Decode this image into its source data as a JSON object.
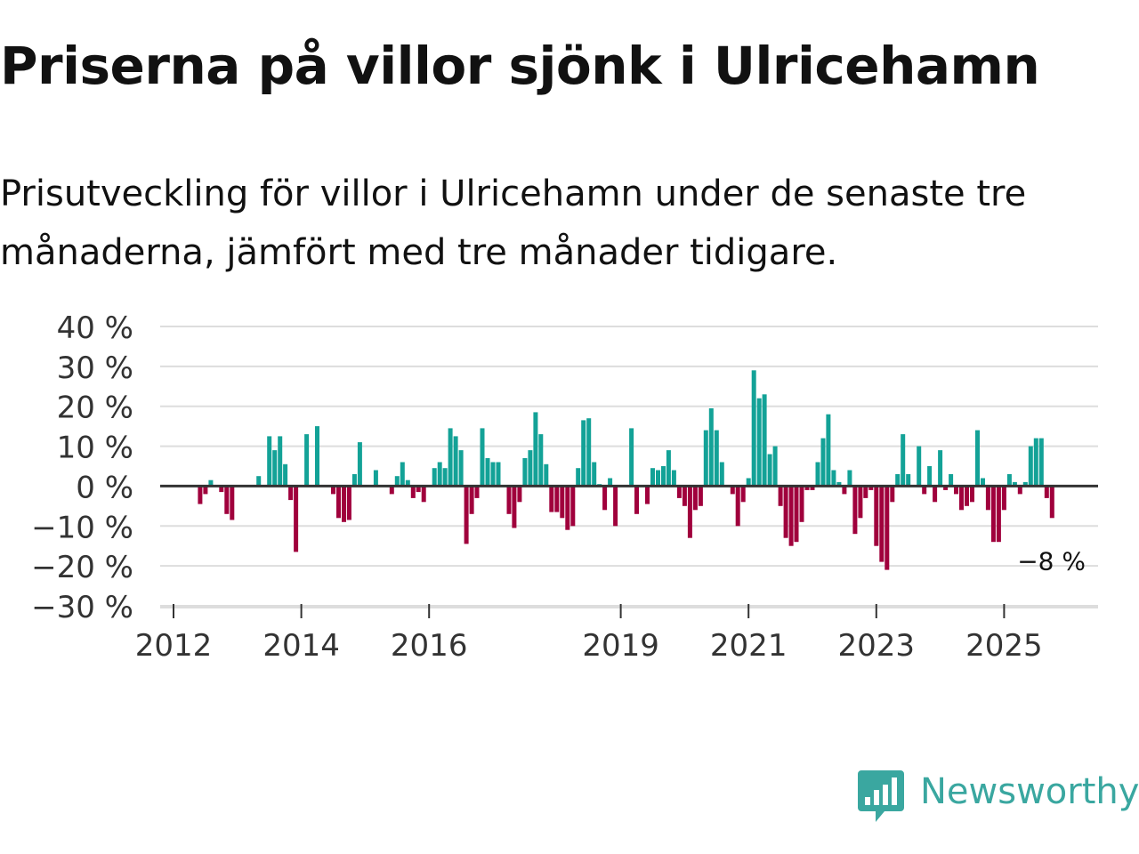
{
  "header": {
    "title": "Priserna på villor sjönk i Ulricehamn",
    "subtitle": "Prisutveckling för villor i Ulricehamn under de senaste tre månaderna, jämfört med tre månader tidigare."
  },
  "brand": {
    "name": "Newsworthy",
    "color": "#3aa7a0"
  },
  "chart_data": {
    "type": "bar",
    "title": "Priserna på villor sjönk i Ulricehamn",
    "xlabel": "",
    "ylabel": "",
    "ylim": [
      -30,
      40
    ],
    "yticks": [
      40,
      30,
      20,
      10,
      0,
      -10,
      -20,
      -30
    ],
    "ytick_labels": [
      "40 %",
      "30 %",
      "20 %",
      "10 %",
      "0 %",
      "−10 %",
      "−20 %",
      "−30 %"
    ],
    "xticks": [
      "2012",
      "2014",
      "2016",
      "2019",
      "2021",
      "2023",
      "2025"
    ],
    "grid": true,
    "colors": {
      "positive": "#13a297",
      "negative": "#a0003c",
      "grid": "#dddddd",
      "zero_line": "#333333"
    },
    "series": [
      {
        "name": "Prisutveckling",
        "values": [
          {
            "date": "2012-06",
            "value": -4.5
          },
          {
            "date": "2012-07",
            "value": -2.0
          },
          {
            "date": "2012-08",
            "value": 1.5
          },
          {
            "date": "2012-10",
            "value": -1.5
          },
          {
            "date": "2012-11",
            "value": -7.0
          },
          {
            "date": "2012-12",
            "value": -8.5
          },
          {
            "date": "2013-05",
            "value": 2.5
          },
          {
            "date": "2013-07",
            "value": 12.5
          },
          {
            "date": "2013-08",
            "value": 9.0
          },
          {
            "date": "2013-09",
            "value": 12.5
          },
          {
            "date": "2013-10",
            "value": 5.5
          },
          {
            "date": "2013-11",
            "value": -3.5
          },
          {
            "date": "2013-12",
            "value": -16.5
          },
          {
            "date": "2014-02",
            "value": 13.0
          },
          {
            "date": "2014-04",
            "value": 15.0
          },
          {
            "date": "2014-07",
            "value": -2.0
          },
          {
            "date": "2014-08",
            "value": -8.0
          },
          {
            "date": "2014-09",
            "value": -9.0
          },
          {
            "date": "2014-10",
            "value": -8.5
          },
          {
            "date": "2014-11",
            "value": 3.0
          },
          {
            "date": "2014-12",
            "value": 11.0
          },
          {
            "date": "2015-03",
            "value": 4.0
          },
          {
            "date": "2015-06",
            "value": -2.0
          },
          {
            "date": "2015-07",
            "value": 2.5
          },
          {
            "date": "2015-08",
            "value": 6.0
          },
          {
            "date": "2015-09",
            "value": 1.5
          },
          {
            "date": "2015-10",
            "value": -3.0
          },
          {
            "date": "2015-11",
            "value": -1.5
          },
          {
            "date": "2015-12",
            "value": -4.0
          },
          {
            "date": "2016-02",
            "value": 4.5
          },
          {
            "date": "2016-03",
            "value": 6.0
          },
          {
            "date": "2016-04",
            "value": 4.5
          },
          {
            "date": "2016-05",
            "value": 14.5
          },
          {
            "date": "2016-06",
            "value": 12.5
          },
          {
            "date": "2016-07",
            "value": 9.0
          },
          {
            "date": "2016-08",
            "value": -14.5
          },
          {
            "date": "2016-09",
            "value": -7.0
          },
          {
            "date": "2016-10",
            "value": -3.0
          },
          {
            "date": "2016-11",
            "value": 14.5
          },
          {
            "date": "2016-12",
            "value": 7.0
          },
          {
            "date": "2017-01",
            "value": 6.0
          },
          {
            "date": "2017-02",
            "value": 6.0
          },
          {
            "date": "2017-04",
            "value": -7.0
          },
          {
            "date": "2017-05",
            "value": -10.5
          },
          {
            "date": "2017-06",
            "value": -4.0
          },
          {
            "date": "2017-07",
            "value": 7.0
          },
          {
            "date": "2017-08",
            "value": 9.0
          },
          {
            "date": "2017-09",
            "value": 18.5
          },
          {
            "date": "2017-10",
            "value": 13.0
          },
          {
            "date": "2017-11",
            "value": 5.5
          },
          {
            "date": "2017-12",
            "value": -6.5
          },
          {
            "date": "2018-01",
            "value": -6.5
          },
          {
            "date": "2018-02",
            "value": -8.0
          },
          {
            "date": "2018-03",
            "value": -11.0
          },
          {
            "date": "2018-04",
            "value": -10.0
          },
          {
            "date": "2018-05",
            "value": 4.5
          },
          {
            "date": "2018-06",
            "value": 16.5
          },
          {
            "date": "2018-07",
            "value": 17.0
          },
          {
            "date": "2018-08",
            "value": 6.0
          },
          {
            "date": "2018-09",
            "value": 0.5
          },
          {
            "date": "2018-10",
            "value": -6.0
          },
          {
            "date": "2018-11",
            "value": 2.0
          },
          {
            "date": "2018-12",
            "value": -10.0
          },
          {
            "date": "2019-03",
            "value": 14.5
          },
          {
            "date": "2019-04",
            "value": -7.0
          },
          {
            "date": "2019-06",
            "value": -4.5
          },
          {
            "date": "2019-07",
            "value": 4.5
          },
          {
            "date": "2019-08",
            "value": 4.0
          },
          {
            "date": "2019-09",
            "value": 5.0
          },
          {
            "date": "2019-10",
            "value": 9.0
          },
          {
            "date": "2019-11",
            "value": 4.0
          },
          {
            "date": "2019-12",
            "value": -3.0
          },
          {
            "date": "2020-01",
            "value": -5.0
          },
          {
            "date": "2020-02",
            "value": -13.0
          },
          {
            "date": "2020-03",
            "value": -6.0
          },
          {
            "date": "2020-04",
            "value": -5.0
          },
          {
            "date": "2020-05",
            "value": 14.0
          },
          {
            "date": "2020-06",
            "value": 19.5
          },
          {
            "date": "2020-07",
            "value": 14.0
          },
          {
            "date": "2020-08",
            "value": 6.0
          },
          {
            "date": "2020-10",
            "value": -2.0
          },
          {
            "date": "2020-11",
            "value": -10.0
          },
          {
            "date": "2020-12",
            "value": -4.0
          },
          {
            "date": "2021-01",
            "value": 2.0
          },
          {
            "date": "2021-02",
            "value": 29.0
          },
          {
            "date": "2021-03",
            "value": 22.0
          },
          {
            "date": "2021-04",
            "value": 23.0
          },
          {
            "date": "2021-05",
            "value": 8.0
          },
          {
            "date": "2021-06",
            "value": 10.0
          },
          {
            "date": "2021-07",
            "value": -5.0
          },
          {
            "date": "2021-08",
            "value": -13.0
          },
          {
            "date": "2021-09",
            "value": -15.0
          },
          {
            "date": "2021-10",
            "value": -14.0
          },
          {
            "date": "2021-11",
            "value": -9.0
          },
          {
            "date": "2021-12",
            "value": -1.0
          },
          {
            "date": "2022-01",
            "value": -1.0
          },
          {
            "date": "2022-02",
            "value": 6.0
          },
          {
            "date": "2022-03",
            "value": 12.0
          },
          {
            "date": "2022-04",
            "value": 18.0
          },
          {
            "date": "2022-05",
            "value": 4.0
          },
          {
            "date": "2022-06",
            "value": 1.0
          },
          {
            "date": "2022-07",
            "value": -2.0
          },
          {
            "date": "2022-08",
            "value": 4.0
          },
          {
            "date": "2022-09",
            "value": -12.0
          },
          {
            "date": "2022-10",
            "value": -8.0
          },
          {
            "date": "2022-11",
            "value": -3.0
          },
          {
            "date": "2022-12",
            "value": -1.0
          },
          {
            "date": "2023-01",
            "value": -15.0
          },
          {
            "date": "2023-02",
            "value": -19.0
          },
          {
            "date": "2023-03",
            "value": -21.0
          },
          {
            "date": "2023-04",
            "value": -4.0
          },
          {
            "date": "2023-05",
            "value": 3.0
          },
          {
            "date": "2023-06",
            "value": 13.0
          },
          {
            "date": "2023-07",
            "value": 3.0
          },
          {
            "date": "2023-09",
            "value": 10.0
          },
          {
            "date": "2023-10",
            "value": -2.0
          },
          {
            "date": "2023-11",
            "value": 5.0
          },
          {
            "date": "2023-12",
            "value": -4.0
          },
          {
            "date": "2024-01",
            "value": 9.0
          },
          {
            "date": "2024-02",
            "value": -1.0
          },
          {
            "date": "2024-03",
            "value": 3.0
          },
          {
            "date": "2024-04",
            "value": -2.0
          },
          {
            "date": "2024-05",
            "value": -6.0
          },
          {
            "date": "2024-06",
            "value": -5.0
          },
          {
            "date": "2024-07",
            "value": -4.0
          },
          {
            "date": "2024-08",
            "value": 14.0
          },
          {
            "date": "2024-09",
            "value": 2.0
          },
          {
            "date": "2024-10",
            "value": -6.0
          },
          {
            "date": "2024-11",
            "value": -14.0
          },
          {
            "date": "2024-12",
            "value": -14.0
          },
          {
            "date": "2025-01",
            "value": -6.0
          },
          {
            "date": "2025-02",
            "value": 3.0
          },
          {
            "date": "2025-03",
            "value": 1.0
          },
          {
            "date": "2025-04",
            "value": -2.0
          },
          {
            "date": "2025-05",
            "value": 1.0
          },
          {
            "date": "2025-06",
            "value": 10.0
          },
          {
            "date": "2025-07",
            "value": 12.0
          },
          {
            "date": "2025-08",
            "value": 12.0
          },
          {
            "date": "2025-09",
            "value": -3.0
          },
          {
            "date": "2025-10",
            "value": -8.0
          }
        ]
      }
    ],
    "annotations": [
      {
        "date": "2025-10",
        "value": -8,
        "text": "−8 %"
      }
    ]
  }
}
